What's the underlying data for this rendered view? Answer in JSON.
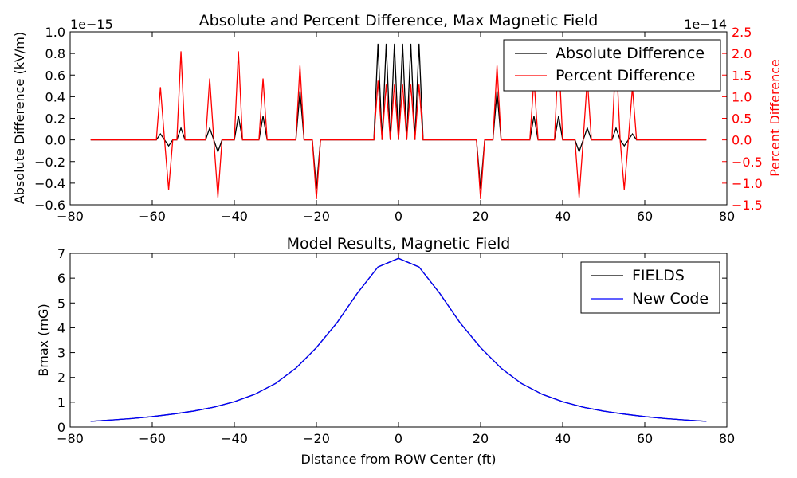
{
  "chart_data": [
    {
      "type": "line",
      "title": "Absolute and Percent Difference, Max Magnetic Field",
      "ylabel": "Absolute Difference (kV/m)",
      "y2label": "Percent Difference",
      "xlim": [
        -80,
        80
      ],
      "ylim": [
        -0.6,
        1.0
      ],
      "y2lim": [
        -1.5,
        2.5
      ],
      "xticks": [
        "−80",
        "−60",
        "−40",
        "−20",
        "0",
        "20",
        "40",
        "60",
        "80"
      ],
      "yticks": [
        "−0.6",
        "−0.4",
        "−0.2",
        "0.0",
        "0.2",
        "0.4",
        "0.6",
        "0.8",
        "1.0"
      ],
      "y2ticks": [
        "−1.5",
        "−1.0",
        "−0.5",
        "0.0",
        "0.5",
        "1.0",
        "1.5",
        "2.0",
        "2.5"
      ],
      "y_offset_label": "1e−15",
      "y2_offset_label": "1e−14",
      "legend_position": "top-right",
      "series": [
        {
          "name": "Absolute Difference",
          "color": "#000000",
          "axis": "left",
          "x": [
            -75,
            -59,
            -58,
            -57,
            -56,
            -55,
            -54,
            -53,
            -52,
            -47,
            -46,
            -45,
            -44,
            -43,
            -40,
            -39,
            -38,
            -34,
            -33,
            -32,
            -25,
            -24,
            -23,
            -21,
            -20,
            -19,
            -6,
            -5,
            -4,
            -3,
            -2,
            -1,
            0,
            1,
            2,
            3,
            4,
            5,
            6,
            19,
            20,
            21,
            23,
            24,
            25,
            32,
            33,
            34,
            38,
            39,
            40,
            43,
            44,
            45,
            46,
            47,
            52,
            53,
            54,
            55,
            56,
            57,
            58,
            59,
            75
          ],
          "values": [
            0,
            0,
            0.055,
            0,
            -0.055,
            0,
            0,
            0.11,
            0,
            0,
            0.11,
            0,
            -0.11,
            0,
            0,
            0.22,
            0,
            0,
            0.22,
            0,
            0,
            0.45,
            0,
            0,
            -0.45,
            0,
            0,
            0.89,
            0,
            0.89,
            0,
            0.89,
            0,
            0.89,
            0,
            0.89,
            0,
            0.89,
            0,
            0,
            -0.45,
            0,
            0,
            0.45,
            0,
            0,
            0.22,
            0,
            0,
            0.22,
            0,
            0,
            -0.11,
            0,
            0.11,
            0,
            0,
            0.11,
            0,
            -0.055,
            0,
            0.055,
            0,
            0,
            0
          ]
        },
        {
          "name": "Percent Difference",
          "color": "#ff0000",
          "axis": "right",
          "x": [
            -75,
            -59,
            -58,
            -57,
            -56,
            -55,
            -54,
            -53,
            -52,
            -47,
            -46,
            -45,
            -44,
            -43,
            -40,
            -39,
            -38,
            -34,
            -33,
            -32,
            -25,
            -24,
            -23,
            -21,
            -20,
            -19,
            -6,
            -5,
            -4,
            -3,
            -2,
            -1,
            0,
            1,
            2,
            3,
            4,
            5,
            6,
            19,
            20,
            21,
            23,
            24,
            25,
            32,
            33,
            34,
            38,
            39,
            40,
            43,
            44,
            45,
            46,
            47,
            52,
            53,
            54,
            55,
            56,
            57,
            58,
            59,
            75
          ],
          "values": [
            0,
            0,
            1.22,
            0,
            -1.15,
            0,
            0,
            2.05,
            0,
            0,
            1.42,
            0,
            -1.33,
            0,
            0,
            2.05,
            0,
            0,
            1.42,
            0,
            0,
            1.72,
            0,
            0,
            -1.37,
            0,
            0,
            1.37,
            0,
            1.28,
            0,
            1.28,
            0,
            1.28,
            0,
            1.28,
            0,
            1.28,
            0,
            0,
            -1.37,
            0,
            0,
            1.72,
            0,
            0,
            1.42,
            0,
            0,
            2.05,
            0,
            0,
            -1.33,
            0,
            1.42,
            0,
            0,
            2.05,
            0,
            -1.15,
            0,
            1.22,
            0,
            0,
            0
          ]
        }
      ]
    },
    {
      "type": "line",
      "title": "Model Results, Magnetic Field",
      "xlabel": "Distance from ROW Center (ft)",
      "ylabel": "Bmax (mG)",
      "xlim": [
        -80,
        80
      ],
      "ylim": [
        0,
        7
      ],
      "xticks": [
        "−80",
        "−60",
        "−40",
        "−20",
        "0",
        "20",
        "40",
        "60",
        "80"
      ],
      "yticks": [
        "0",
        "1",
        "2",
        "3",
        "4",
        "5",
        "6",
        "7"
      ],
      "legend_position": "top-right",
      "series": [
        {
          "name": "FIELDS",
          "color": "#000000",
          "x": [
            -75,
            -70,
            -65,
            -60,
            -55,
            -50,
            -45,
            -40,
            -35,
            -30,
            -25,
            -20,
            -15,
            -10,
            -5,
            0,
            5,
            10,
            15,
            20,
            25,
            30,
            35,
            40,
            45,
            50,
            55,
            60,
            65,
            70,
            75
          ],
          "values": [
            0.23,
            0.28,
            0.34,
            0.42,
            0.52,
            0.64,
            0.8,
            1.02,
            1.32,
            1.75,
            2.37,
            3.2,
            4.2,
            5.4,
            6.45,
            6.8,
            6.45,
            5.4,
            4.2,
            3.2,
            2.37,
            1.75,
            1.32,
            1.02,
            0.8,
            0.64,
            0.52,
            0.42,
            0.34,
            0.28,
            0.23
          ]
        },
        {
          "name": "New Code",
          "color": "#0000ff",
          "x": [
            -75,
            -70,
            -65,
            -60,
            -55,
            -50,
            -45,
            -40,
            -35,
            -30,
            -25,
            -20,
            -15,
            -10,
            -5,
            0,
            5,
            10,
            15,
            20,
            25,
            30,
            35,
            40,
            45,
            50,
            55,
            60,
            65,
            70,
            75
          ],
          "values": [
            0.23,
            0.28,
            0.34,
            0.42,
            0.52,
            0.64,
            0.8,
            1.02,
            1.32,
            1.75,
            2.37,
            3.2,
            4.2,
            5.4,
            6.45,
            6.8,
            6.45,
            5.4,
            4.2,
            3.2,
            2.37,
            1.75,
            1.32,
            1.02,
            0.8,
            0.64,
            0.52,
            0.42,
            0.34,
            0.28,
            0.23
          ]
        }
      ]
    }
  ]
}
